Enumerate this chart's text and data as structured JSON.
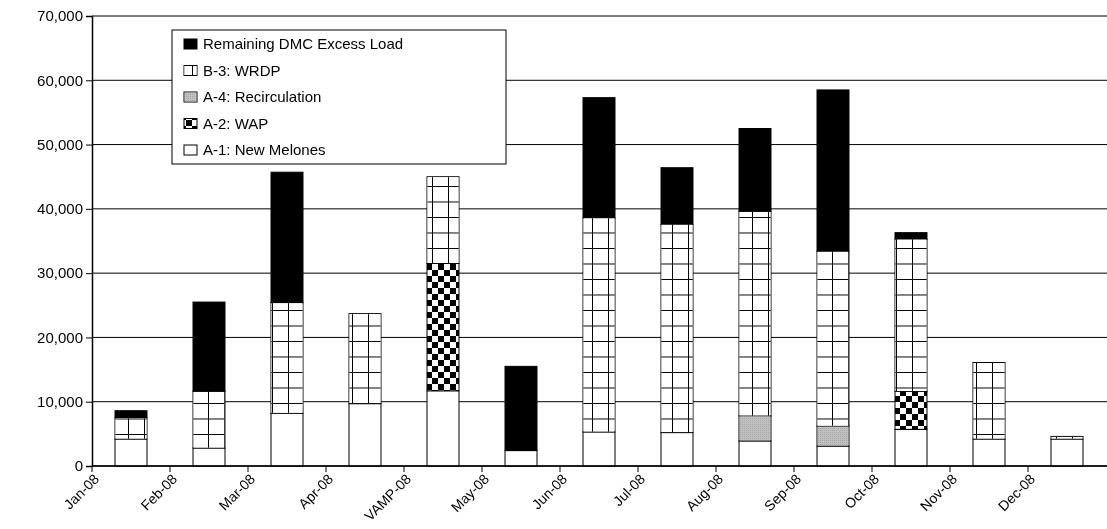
{
  "chart_data": {
    "type": "bar",
    "stacked": true,
    "categories": [
      "Jan-08",
      "Feb-08",
      "Mar-08",
      "Apr-08",
      "VAMP-08",
      "May-08",
      "Jun-08",
      "Jul-08",
      "Aug-08",
      "Sep-08",
      "Oct-08",
      "Nov-08",
      "Dec-08"
    ],
    "series": [
      {
        "name": "A-1: New Melones",
        "color": "#ffffff",
        "values": [
          4200,
          2800,
          8200,
          9700,
          11700,
          2400,
          5300,
          5200,
          3900,
          3100,
          5700,
          4200,
          4200
        ]
      },
      {
        "name": "A-2: WAP",
        "color": "#000000",
        "values": [
          null,
          null,
          null,
          null,
          19800,
          null,
          null,
          null,
          null,
          null,
          5900,
          null,
          null
        ]
      },
      {
        "name": "A-4: Recirculation",
        "color": "#c0c0c0",
        "values": [
          null,
          null,
          null,
          null,
          null,
          null,
          null,
          null,
          3900,
          3100,
          null,
          null,
          null
        ]
      },
      {
        "name": "B-3: WRDP",
        "color": "#ffffff",
        "values": [
          3300,
          8800,
          17200,
          14000,
          13500,
          null,
          33300,
          32400,
          31800,
          27200,
          23700,
          11900,
          400
        ]
      },
      {
        "name": "Remaining DMC Excess Load",
        "color": "#000000",
        "values": [
          1100,
          13900,
          20300,
          null,
          null,
          13100,
          18700,
          8800,
          12900,
          25100,
          1000,
          null,
          null
        ]
      }
    ],
    "ylim": [
      0,
      70000
    ],
    "yticks": [
      {
        "value": 0,
        "label": "0"
      },
      {
        "value": 10000,
        "label": "10,000"
      },
      {
        "value": 20000,
        "label": "20,000"
      },
      {
        "value": 30000,
        "label": "30,000"
      },
      {
        "value": 40000,
        "label": "40,000"
      },
      {
        "value": 50000,
        "label": "50,000"
      },
      {
        "value": 60000,
        "label": "60,000"
      },
      {
        "value": 70000,
        "label": "70,000"
      }
    ],
    "grid": "y",
    "legend": "top left"
  }
}
